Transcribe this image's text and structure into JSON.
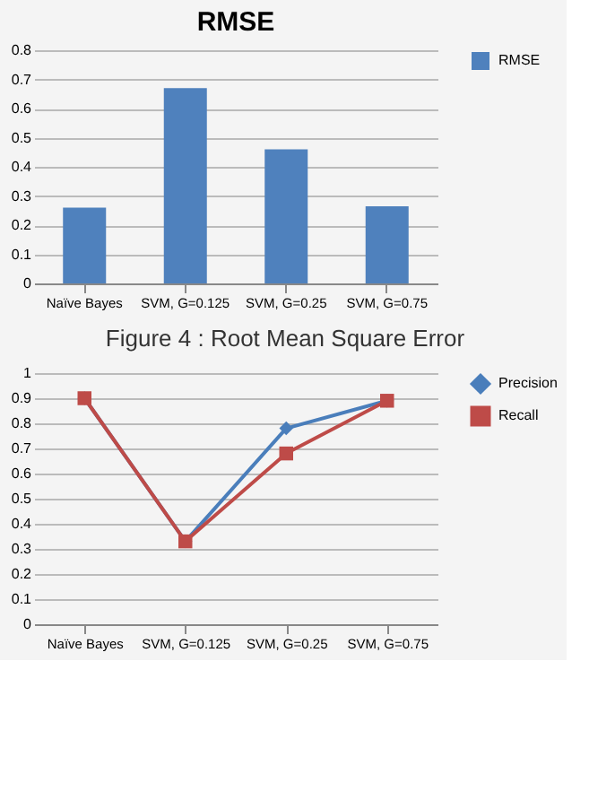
{
  "chart_data": [
    {
      "type": "bar",
      "title": "RMSE",
      "categories": [
        "Naïve Bayes",
        "SVM, G=0.125",
        "SVM, G=0.25",
        "SVM, G=0.75"
      ],
      "series": [
        {
          "name": "RMSE",
          "color": "#4f81bd",
          "values": [
            0.26,
            0.67,
            0.46,
            0.265
          ]
        }
      ],
      "ylim": [
        0,
        0.8
      ],
      "yticks": [
        0,
        0.1,
        0.2,
        0.3,
        0.4,
        0.5,
        0.6,
        0.7,
        0.8
      ],
      "grid": "y",
      "legend": "right",
      "annotations": [
        "Figure 4 : Root Mean Square Error"
      ]
    },
    {
      "type": "line",
      "categories": [
        "Naïve Bayes",
        "SVM, G=0.125",
        "SVM, G=0.25",
        "SVM, G=0.75"
      ],
      "series": [
        {
          "name": "Precision",
          "color": "#4a7ebb",
          "marker": "diamond",
          "values": [
            0.9,
            0.33,
            0.78,
            0.89
          ]
        },
        {
          "name": "Recall",
          "color": "#be4b48",
          "marker": "square",
          "values": [
            0.9,
            0.33,
            0.68,
            0.89
          ]
        }
      ],
      "ylim": [
        0,
        1
      ],
      "yticks": [
        0,
        0.1,
        0.2,
        0.3,
        0.4,
        0.5,
        0.6,
        0.7,
        0.8,
        0.9,
        1
      ],
      "grid": "y",
      "legend": "right",
      "line_style": "solid"
    }
  ]
}
